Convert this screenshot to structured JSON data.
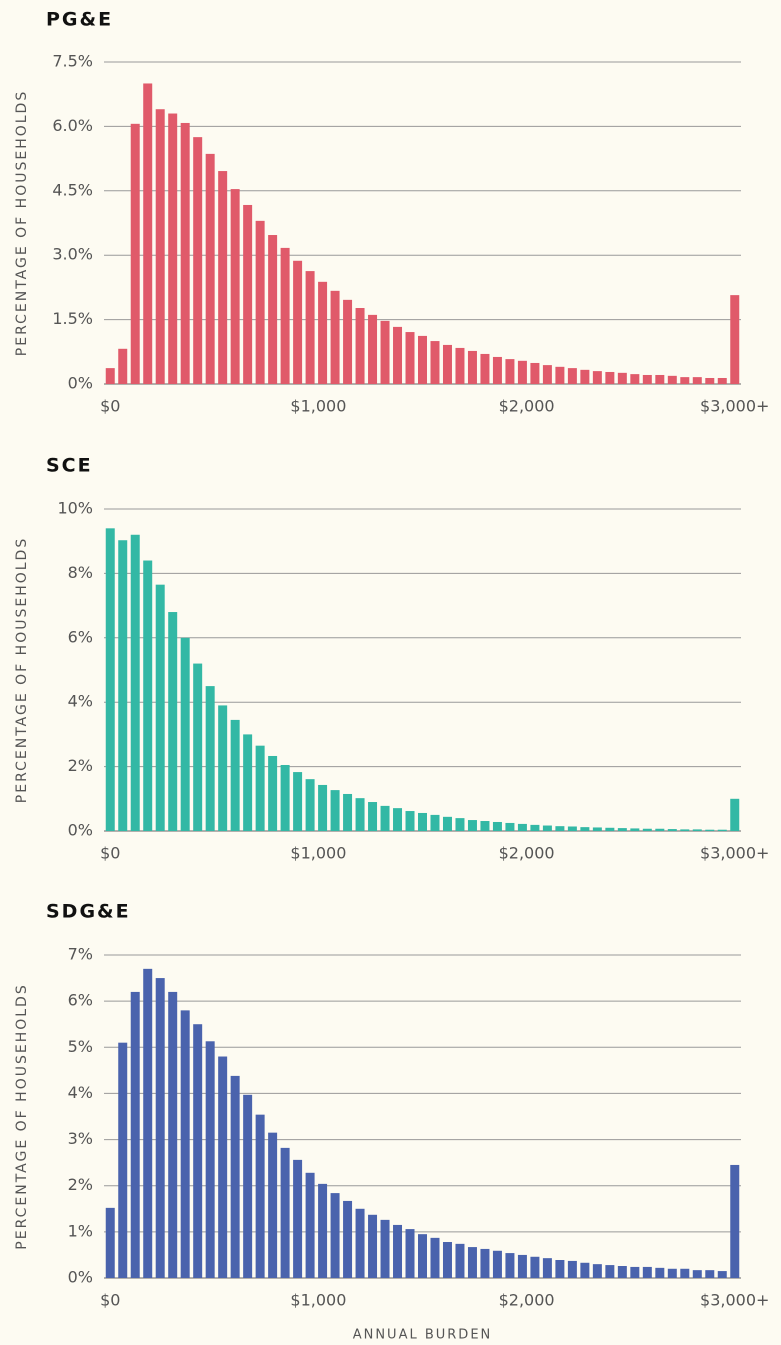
{
  "chart_data": [
    {
      "type": "bar",
      "title": "PG&E",
      "ylabel": "PERCENTAGE OF HOUSEHOLDS",
      "color": "#e05a6a",
      "grid": true,
      "x": [
        0,
        60,
        120,
        180,
        240,
        300,
        360,
        420,
        480,
        540,
        600,
        660,
        720,
        780,
        840,
        900,
        960,
        1020,
        1080,
        1140,
        1200,
        1260,
        1320,
        1380,
        1440,
        1500,
        1560,
        1620,
        1680,
        1740,
        1800,
        1860,
        1920,
        1980,
        2040,
        2100,
        2160,
        2220,
        2280,
        2340,
        2400,
        2460,
        2520,
        2580,
        2640,
        2700,
        2760,
        2820,
        2880,
        2940,
        3000
      ],
      "values": [
        0.37,
        0.82,
        6.06,
        7.0,
        6.4,
        6.3,
        6.08,
        5.75,
        5.36,
        4.96,
        4.54,
        4.17,
        3.8,
        3.47,
        3.17,
        2.87,
        2.63,
        2.38,
        2.17,
        1.96,
        1.77,
        1.61,
        1.47,
        1.33,
        1.21,
        1.12,
        1.0,
        0.91,
        0.84,
        0.77,
        0.7,
        0.63,
        0.58,
        0.54,
        0.49,
        0.44,
        0.4,
        0.37,
        0.33,
        0.3,
        0.28,
        0.26,
        0.23,
        0.21,
        0.21,
        0.19,
        0.16,
        0.16,
        0.14,
        0.14,
        2.07
      ],
      "xlim": [
        -30,
        3030
      ],
      "ylim": [
        0,
        7.5
      ],
      "xticks": [
        {
          "value": 0,
          "label": "$0"
        },
        {
          "value": 1000,
          "label": "$1,000"
        },
        {
          "value": 2000,
          "label": "$2,000"
        },
        {
          "value": 3000,
          "label": "$3,000+"
        }
      ],
      "yticks": [
        {
          "value": 0,
          "label": "0%"
        },
        {
          "value": 1.5,
          "label": "1.5%"
        },
        {
          "value": 3,
          "label": "3.0%"
        },
        {
          "value": 4.5,
          "label": "4.5%"
        },
        {
          "value": 6,
          "label": "6.0%"
        },
        {
          "value": 7.5,
          "label": "7.5%"
        }
      ]
    },
    {
      "type": "bar",
      "title": "SCE",
      "ylabel": "PERCENTAGE OF HOUSEHOLDS",
      "color": "#33b8a5",
      "grid": true,
      "x": [
        0,
        60,
        120,
        180,
        240,
        300,
        360,
        420,
        480,
        540,
        600,
        660,
        720,
        780,
        840,
        900,
        960,
        1020,
        1080,
        1140,
        1200,
        1260,
        1320,
        1380,
        1440,
        1500,
        1560,
        1620,
        1680,
        1740,
        1800,
        1860,
        1920,
        1980,
        2040,
        2100,
        2160,
        2220,
        2280,
        2340,
        2400,
        2460,
        2520,
        2580,
        2640,
        2700,
        2760,
        2820,
        2880,
        2940,
        3000
      ],
      "values": [
        9.4,
        9.03,
        9.2,
        8.4,
        7.65,
        6.8,
        6.0,
        5.2,
        4.5,
        3.9,
        3.45,
        3.0,
        2.65,
        2.33,
        2.05,
        1.83,
        1.61,
        1.43,
        1.27,
        1.15,
        1.02,
        0.9,
        0.78,
        0.71,
        0.62,
        0.56,
        0.5,
        0.44,
        0.4,
        0.34,
        0.31,
        0.28,
        0.25,
        0.22,
        0.19,
        0.17,
        0.15,
        0.14,
        0.12,
        0.11,
        0.1,
        0.09,
        0.08,
        0.07,
        0.07,
        0.06,
        0.05,
        0.05,
        0.04,
        0.04,
        1.0
      ],
      "xlim": [
        -30,
        3030
      ],
      "ylim": [
        0,
        10
      ],
      "xticks": [
        {
          "value": 0,
          "label": "$0"
        },
        {
          "value": 1000,
          "label": "$1,000"
        },
        {
          "value": 2000,
          "label": "$2,000"
        },
        {
          "value": 3000,
          "label": "$3,000+"
        }
      ],
      "yticks": [
        {
          "value": 0,
          "label": "0%"
        },
        {
          "value": 2,
          "label": "2%"
        },
        {
          "value": 4,
          "label": "4%"
        },
        {
          "value": 6,
          "label": "6%"
        },
        {
          "value": 8,
          "label": "8%"
        },
        {
          "value": 10,
          "label": "10%"
        }
      ]
    },
    {
      "type": "bar",
      "title": "SDG&E",
      "ylabel": "PERCENTAGE OF HOUSEHOLDS",
      "xlabel": "ANNUAL BURDEN",
      "color": "#4a63ad",
      "grid": true,
      "x": [
        0,
        60,
        120,
        180,
        240,
        300,
        360,
        420,
        480,
        540,
        600,
        660,
        720,
        780,
        840,
        900,
        960,
        1020,
        1080,
        1140,
        1200,
        1260,
        1320,
        1380,
        1440,
        1500,
        1560,
        1620,
        1680,
        1740,
        1800,
        1860,
        1920,
        1980,
        2040,
        2100,
        2160,
        2220,
        2280,
        2340,
        2400,
        2460,
        2520,
        2580,
        2640,
        2700,
        2760,
        2820,
        2880,
        2940,
        3000
      ],
      "values": [
        1.52,
        5.1,
        6.2,
        6.7,
        6.5,
        6.2,
        5.8,
        5.5,
        5.13,
        4.8,
        4.38,
        3.97,
        3.54,
        3.15,
        2.82,
        2.56,
        2.28,
        2.04,
        1.84,
        1.67,
        1.5,
        1.37,
        1.26,
        1.15,
        1.06,
        0.95,
        0.87,
        0.78,
        0.74,
        0.67,
        0.63,
        0.59,
        0.54,
        0.5,
        0.46,
        0.43,
        0.39,
        0.37,
        0.33,
        0.3,
        0.28,
        0.26,
        0.24,
        0.24,
        0.22,
        0.2,
        0.2,
        0.17,
        0.17,
        0.15,
        2.45
      ],
      "xlim": [
        -30,
        3030
      ],
      "ylim": [
        0,
        7
      ],
      "xticks": [
        {
          "value": 0,
          "label": "$0"
        },
        {
          "value": 1000,
          "label": "$1,000"
        },
        {
          "value": 2000,
          "label": "$2,000"
        },
        {
          "value": 3000,
          "label": "$3,000+"
        }
      ],
      "yticks": [
        {
          "value": 0,
          "label": "0%"
        },
        {
          "value": 1,
          "label": "1%"
        },
        {
          "value": 2,
          "label": "2%"
        },
        {
          "value": 3,
          "label": "3%"
        },
        {
          "value": 4,
          "label": "4%"
        },
        {
          "value": 5,
          "label": "5%"
        },
        {
          "value": 6,
          "label": "6%"
        },
        {
          "value": 7,
          "label": "7%"
        }
      ]
    }
  ]
}
